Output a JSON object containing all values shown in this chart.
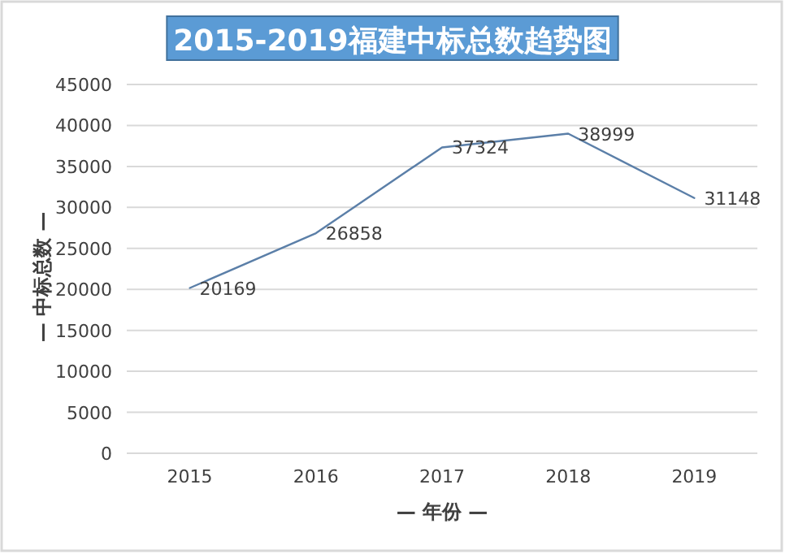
{
  "chart_data": {
    "type": "line",
    "title": "2015-2019福建中标总数趋势图",
    "xlabel": "— 年份 —",
    "ylabel": "— 中标总数 —",
    "categories": [
      "2015",
      "2016",
      "2017",
      "2018",
      "2019"
    ],
    "series": [
      {
        "color": "#5b7fa8",
        "values": [
          20169,
          26858,
          37324,
          38999,
          31148
        ]
      }
    ],
    "ylim": [
      0,
      45000
    ],
    "yticks": [
      0,
      5000,
      10000,
      15000,
      20000,
      25000,
      30000,
      35000,
      40000,
      45000
    ],
    "grid": "y",
    "data_labels": true,
    "marker": "none",
    "line_style": "solid"
  }
}
